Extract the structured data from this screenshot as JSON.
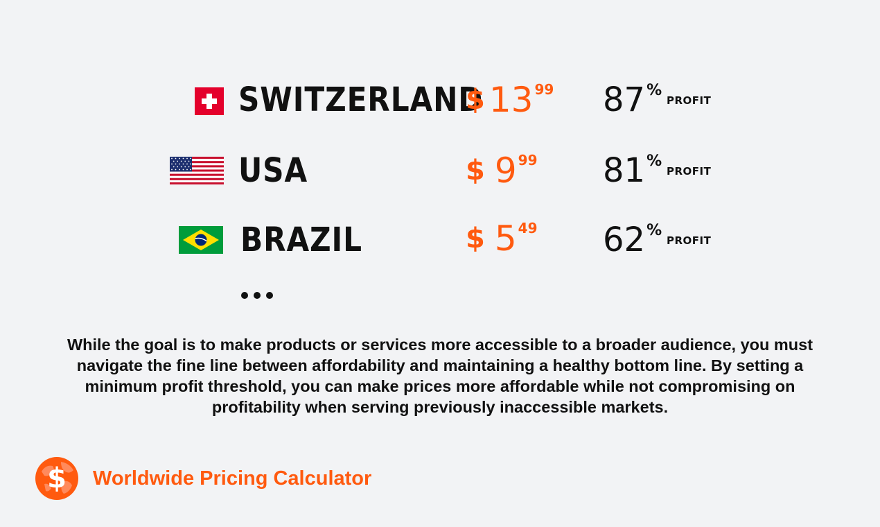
{
  "rows": [
    {
      "country": "SWITZERLAND",
      "flag": "switzerland-flag-icon",
      "currency": "$",
      "price_int": "13",
      "price_cents": "99",
      "percent": "87",
      "percent_sign": "%",
      "profit_label": "PROFIT"
    },
    {
      "country": "USA",
      "flag": "usa-flag-icon",
      "currency": "$",
      "price_int": "9",
      "price_cents": "99",
      "percent": "81",
      "percent_sign": "%",
      "profit_label": "PROFIT"
    },
    {
      "country": "BRAZIL",
      "flag": "brazil-flag-icon",
      "currency": "$",
      "price_int": "5",
      "price_cents": "49",
      "percent": "62",
      "percent_sign": "%",
      "profit_label": "PROFIT"
    }
  ],
  "description": "While the goal is to make products or services more accessible to a broader audience, you must navigate the fine line between affordability and maintaining a healthy bottom line. By setting a minimum profit threshold, you can make prices more affordable while not compromising on profitability when serving previously inaccessible markets.",
  "brand": {
    "name": "Worldwide Pricing Calculator",
    "icon": "globe-dollar-icon"
  },
  "colors": {
    "accent": "#ff5a0f",
    "text": "#111111",
    "background": "#f2f3f5"
  }
}
